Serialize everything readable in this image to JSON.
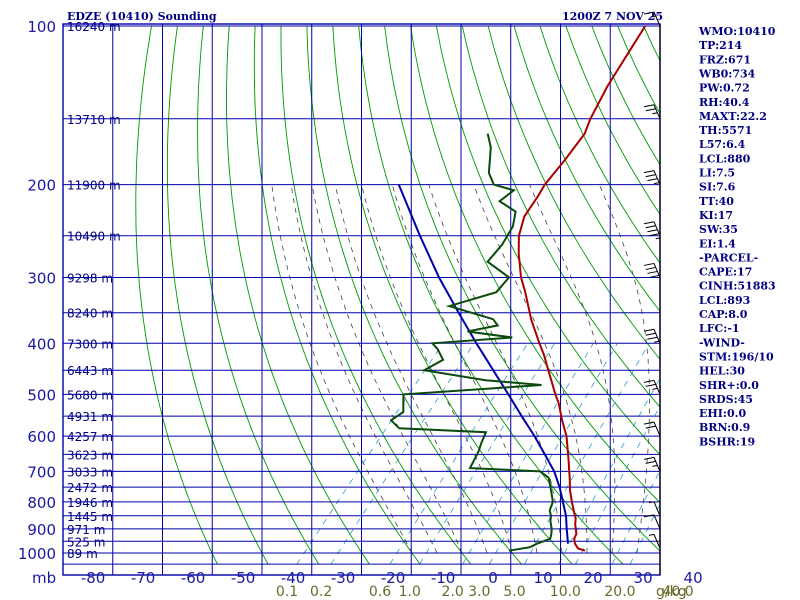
{
  "chart_data": {
    "type": "skew-t sounding",
    "title_left": "EDZE (10410) Sounding",
    "title_right": "1200Z  7 NOV 25",
    "pressure_axis_label": "mb",
    "pressure_levels": [
      100,
      200,
      300,
      400,
      500,
      600,
      700,
      800,
      900,
      1000
    ],
    "temperature_axis": [
      -80,
      -70,
      -60,
      -50,
      -40,
      -30,
      -20,
      -10,
      0,
      10,
      20,
      30,
      40
    ],
    "mixing_ratio_labels": [
      "0.1",
      "0.2",
      "0.6",
      "1.0",
      "2.0",
      "3.0",
      "5.0",
      "10.0",
      "20.0",
      "40.0"
    ],
    "mixing_ratio_unit": "g/kg",
    "height_labels": [
      {
        "p": 100,
        "text": "16240 m"
      },
      {
        "p": 150,
        "text": "13710 m"
      },
      {
        "p": 200,
        "text": "11900 m"
      },
      {
        "p": 250,
        "text": "10490 m"
      },
      {
        "p": 300,
        "text": "9298 m"
      },
      {
        "p": 350,
        "text": "8240 m"
      },
      {
        "p": 400,
        "text": "7300 m"
      },
      {
        "p": 450,
        "text": "6443 m"
      },
      {
        "p": 500,
        "text": "5680 m"
      },
      {
        "p": 550,
        "text": "4931 m"
      },
      {
        "p": 600,
        "text": "4257 m"
      },
      {
        "p": 650,
        "text": "3623 m"
      },
      {
        "p": 700,
        "text": "3033 m"
      },
      {
        "p": 750,
        "text": "2472 m"
      },
      {
        "p": 800,
        "text": "1946 m"
      },
      {
        "p": 850,
        "text": "1445 m"
      },
      {
        "p": 900,
        "text": "971 m"
      },
      {
        "p": 950,
        "text": "525 m"
      },
      {
        "p": 1000,
        "text": "89 m"
      }
    ],
    "temperature_profile": [
      [
        990,
        14.2
      ],
      [
        980,
        12.4
      ],
      [
        960,
        11.0
      ],
      [
        940,
        10.0
      ],
      [
        920,
        9.6
      ],
      [
        900,
        8.6
      ],
      [
        880,
        7.6
      ],
      [
        860,
        6.8
      ],
      [
        840,
        5.6
      ],
      [
        820,
        4.4
      ],
      [
        800,
        3.2
      ],
      [
        760,
        0.8
      ],
      [
        720,
        -1.4
      ],
      [
        700,
        -2.6
      ],
      [
        680,
        -3.8
      ],
      [
        640,
        -6.4
      ],
      [
        600,
        -9.2
      ],
      [
        560,
        -12.8
      ],
      [
        520,
        -16.4
      ],
      [
        500,
        -18.6
      ],
      [
        460,
        -23.0
      ],
      [
        420,
        -27.8
      ],
      [
        400,
        -30.6
      ],
      [
        360,
        -36.4
      ],
      [
        320,
        -42.2
      ],
      [
        300,
        -45.6
      ],
      [
        270,
        -50.2
      ],
      [
        250,
        -53.2
      ],
      [
        230,
        -55.4
      ],
      [
        210,
        -56.2
      ],
      [
        200,
        -56.8
      ],
      [
        180,
        -57.0
      ],
      [
        160,
        -57.6
      ],
      [
        150,
        -59.0
      ],
      [
        130,
        -61.2
      ],
      [
        110,
        -63.0
      ],
      [
        100,
        -64.0
      ]
    ],
    "dewpoint_profile": [
      [
        990,
        -1.0
      ],
      [
        975,
        2.6
      ],
      [
        960,
        3.4
      ],
      [
        940,
        5.2
      ],
      [
        920,
        4.6
      ],
      [
        900,
        3.8
      ],
      [
        870,
        2.2
      ],
      [
        850,
        1.4
      ],
      [
        830,
        0.2
      ],
      [
        800,
        -0.6
      ],
      [
        760,
        -3.0
      ],
      [
        720,
        -5.6
      ],
      [
        700,
        -8.4
      ],
      [
        690,
        -23.0
      ],
      [
        640,
        -24.2
      ],
      [
        620,
        -25.0
      ],
      [
        590,
        -26.0
      ],
      [
        580,
        -44.0
      ],
      [
        560,
        -47.0
      ],
      [
        540,
        -46.0
      ],
      [
        500,
        -49.0
      ],
      [
        480,
        -23.0
      ],
      [
        470,
        -35.0
      ],
      [
        450,
        -49.0
      ],
      [
        430,
        -47.0
      ],
      [
        410,
        -50.0
      ],
      [
        400,
        -52.0
      ],
      [
        390,
        -37.0
      ],
      [
        380,
        -47.0
      ],
      [
        370,
        -42.0
      ],
      [
        360,
        -44.0
      ],
      [
        340,
        -55.0
      ],
      [
        320,
        -48.0
      ],
      [
        300,
        -48.0
      ],
      [
        280,
        -55.0
      ],
      [
        260,
        -55.0
      ],
      [
        240,
        -56.0
      ],
      [
        225,
        -58.0
      ],
      [
        215,
        -63.0
      ],
      [
        205,
        -62.0
      ],
      [
        200,
        -67.0
      ],
      [
        190,
        -70.0
      ],
      [
        170,
        -74.0
      ],
      [
        160,
        -77.0
      ]
    ],
    "parcel_profile": [
      [
        960,
        9.6
      ],
      [
        900,
        6.8
      ],
      [
        850,
        4.4
      ],
      [
        800,
        1.4
      ],
      [
        750,
        -1.8
      ],
      [
        700,
        -5.6
      ],
      [
        650,
        -10.4
      ],
      [
        600,
        -15.6
      ],
      [
        550,
        -21.6
      ],
      [
        500,
        -28.0
      ],
      [
        450,
        -35.2
      ],
      [
        400,
        -43.2
      ],
      [
        350,
        -52.0
      ],
      [
        300,
        -62.0
      ],
      [
        250,
        -73.0
      ],
      [
        200,
        -86.0
      ]
    ],
    "wind_barbs": [
      {
        "p": 980,
        "spd": 5
      },
      {
        "p": 900,
        "spd": 10
      },
      {
        "p": 850,
        "spd": 5
      },
      {
        "p": 700,
        "spd": 25
      },
      {
        "p": 600,
        "spd": 20
      },
      {
        "p": 500,
        "spd": 25
      },
      {
        "p": 400,
        "spd": 35
      },
      {
        "p": 300,
        "spd": 40
      },
      {
        "p": 250,
        "spd": 45
      },
      {
        "p": 200,
        "spd": 35
      },
      {
        "p": 150,
        "spd": 25
      },
      {
        "p": 100,
        "spd": 15
      }
    ],
    "indices": [
      "WMO:10410",
      "TP:214",
      "FRZ:671",
      "WB0:734",
      "PW:0.72",
      "RH:40.4",
      "MAXT:22.2",
      "TH:5571",
      "L57:6.4",
      "LCL:880",
      "LI:7.5",
      "SI:7.6",
      "TT:40",
      "KI:17",
      "SW:35",
      "EI:1.4",
      "-PARCEL-",
      "CAPE:17",
      "CINH:51883",
      "LCL:893",
      "CAP:8.0",
      "LFC:-1",
      "-WIND-",
      "STM:196/10",
      "HEL:30",
      "SHR+:0.0",
      "SRDS:45",
      "EHI:0.0",
      "BRN:0.9",
      "BSHR:19"
    ],
    "colors": {
      "grid": "#0000aa",
      "dry_adiabat": "#009900",
      "moist_adiabat": "#444444",
      "mixing_ratio": "#3399cc",
      "temperature": "#aa0000",
      "dewpoint": "#0a4a0a",
      "parcel": "#0000aa",
      "text": "#000080"
    }
  }
}
